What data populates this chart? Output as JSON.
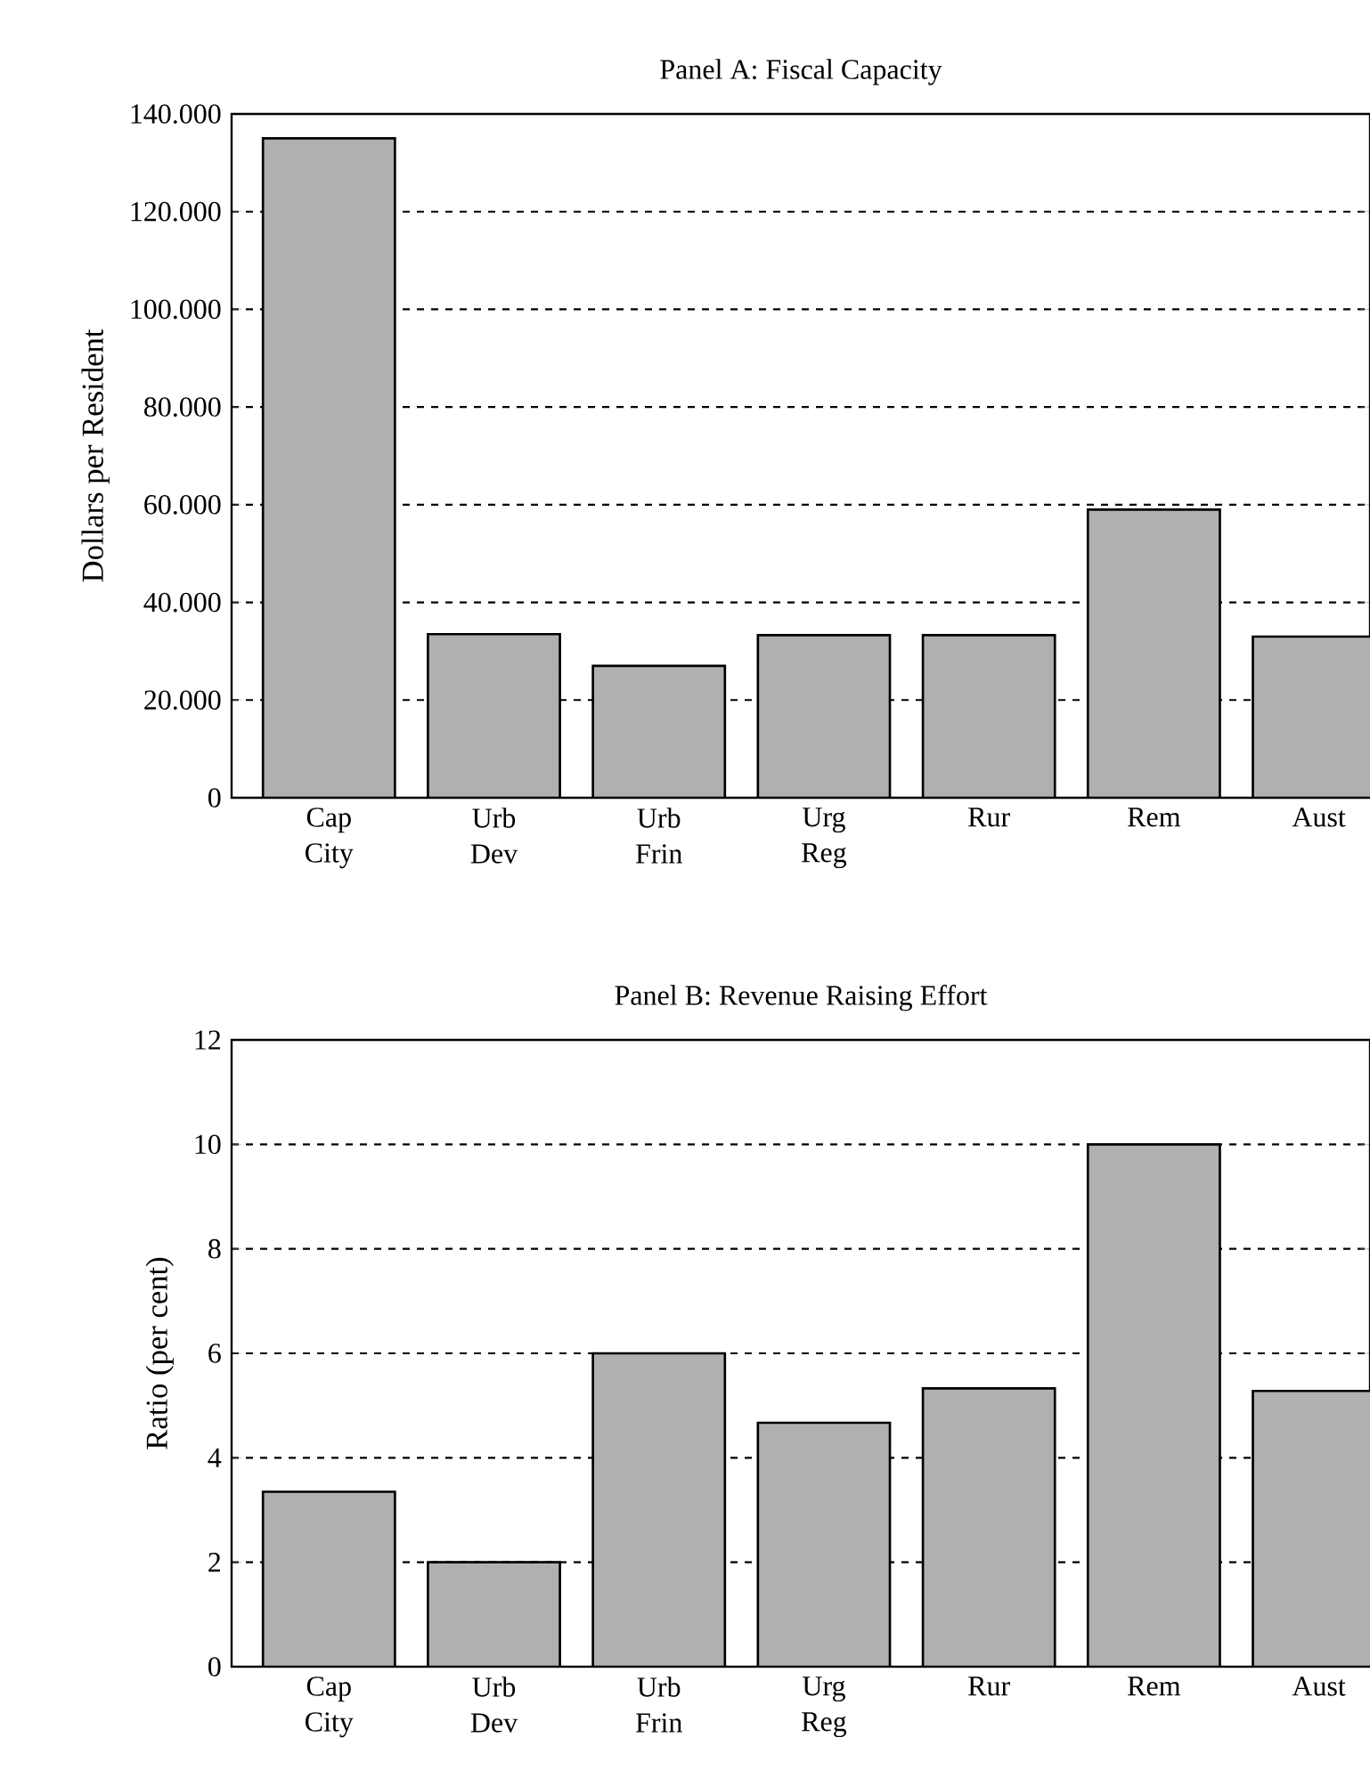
{
  "chart_data": [
    {
      "type": "bar",
      "title": "Panel A: Fiscal Capacity",
      "ylabel": "Dollars per Resident",
      "categories": [
        "Cap City",
        "Urb Dev",
        "Urb Frin",
        "Urg Reg",
        "Rur",
        "Rem",
        "Aust"
      ],
      "values": [
        135000,
        33500,
        27000,
        33300,
        33300,
        59000,
        33000
      ],
      "color": "#b0b0b0",
      "ylim": [
        0,
        140000
      ],
      "yticks": [
        0,
        {
          "value": 20000,
          "label": "20.000"
        },
        {
          "value": 40000,
          "label": "40.000"
        },
        {
          "value": 60000,
          "label": "60.000"
        },
        {
          "value": 80000,
          "label": "80.000"
        },
        {
          "value": 100000,
          "label": "100.000"
        },
        {
          "value": 120000,
          "label": "120.000"
        },
        {
          "value": 140000,
          "label": "140.000"
        }
      ],
      "grid": "y"
    },
    {
      "type": "bar",
      "title": "Panel B: Revenue Raising Effort",
      "ylabel": "Ratio (per cent)",
      "categories": [
        "Cap City",
        "Urb Dev",
        "Urb Frin",
        "Urg Reg",
        "Rur",
        "Rem",
        "Aust"
      ],
      "values": [
        3.35,
        2.0,
        6.0,
        4.67,
        5.33,
        10.0,
        5.28
      ],
      "color": "#b0b0b0",
      "ylim": [
        0,
        12
      ],
      "yticks": [
        0,
        2,
        4,
        6,
        8,
        10,
        12
      ],
      "grid": "y"
    }
  ]
}
